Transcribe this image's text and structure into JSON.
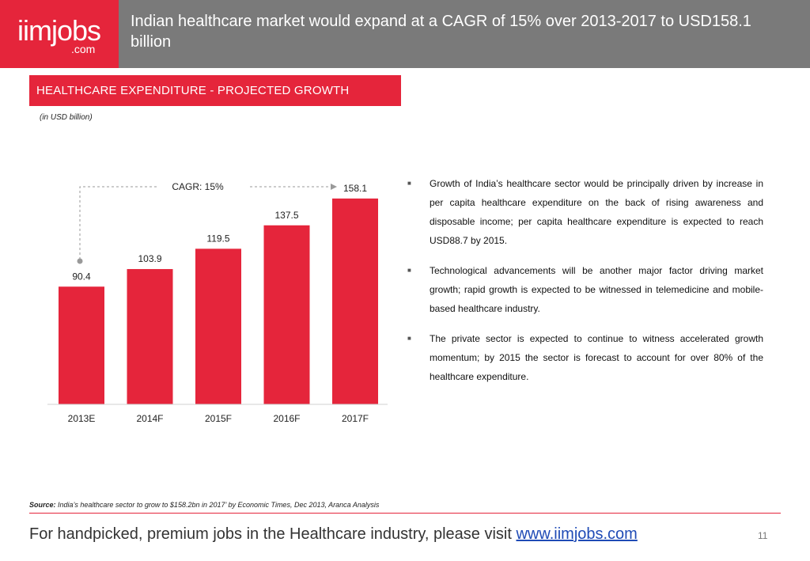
{
  "header": {
    "logo_text": "iimjobs",
    "logo_sub": ".com",
    "title": "Indian healthcare market would expand at a CAGR of 15% over 2013-2017 to USD158.1 billion"
  },
  "section": {
    "title": "HEALTHCARE EXPENDITURE - PROJECTED GROWTH",
    "unit_note": "(in USD billion)"
  },
  "chart_data": {
    "type": "bar",
    "categories": [
      "2013E",
      "2014F",
      "2015F",
      "2016F",
      "2017F"
    ],
    "values": [
      90.4,
      103.9,
      119.5,
      137.5,
      158.1
    ],
    "value_labels": [
      "90.4",
      "103.9",
      "119.5",
      "137.5",
      "158.1"
    ],
    "ylim": [
      0,
      172
    ],
    "annotation": "CAGR: 15%",
    "bar_color": "#e5253b",
    "grid": false,
    "legend": "none"
  },
  "bullets": [
    "Growth of India’s healthcare sector would be principally driven by increase in per capita healthcare expenditure on the back of rising awareness and disposable income; per capita healthcare expenditure is expected to reach USD88.7 by 2015.",
    "Technological advancements will be another major factor driving market growth; rapid growth is expected to be witnessed in telemedicine and mobile-based healthcare industry.",
    "The private sector is expected to continue to witness accelerated growth momentum; by 2015 the sector is forecast to account for over 80% of the healthcare expenditure."
  ],
  "source": {
    "label": "Source:",
    "text": " India’s healthcare sector to grow to $158.2bn in 2017’ by Economic Times, Dec 2013, Aranca Analysis"
  },
  "footer": {
    "text": "For handpicked, premium jobs in the Healthcare industry, please visit ",
    "link": "www.iimjobs.com",
    "page_number": "11"
  },
  "colors": {
    "accent": "#e5253b",
    "header_gray": "#7a7a7a",
    "link_blue": "#1f4bb6"
  }
}
